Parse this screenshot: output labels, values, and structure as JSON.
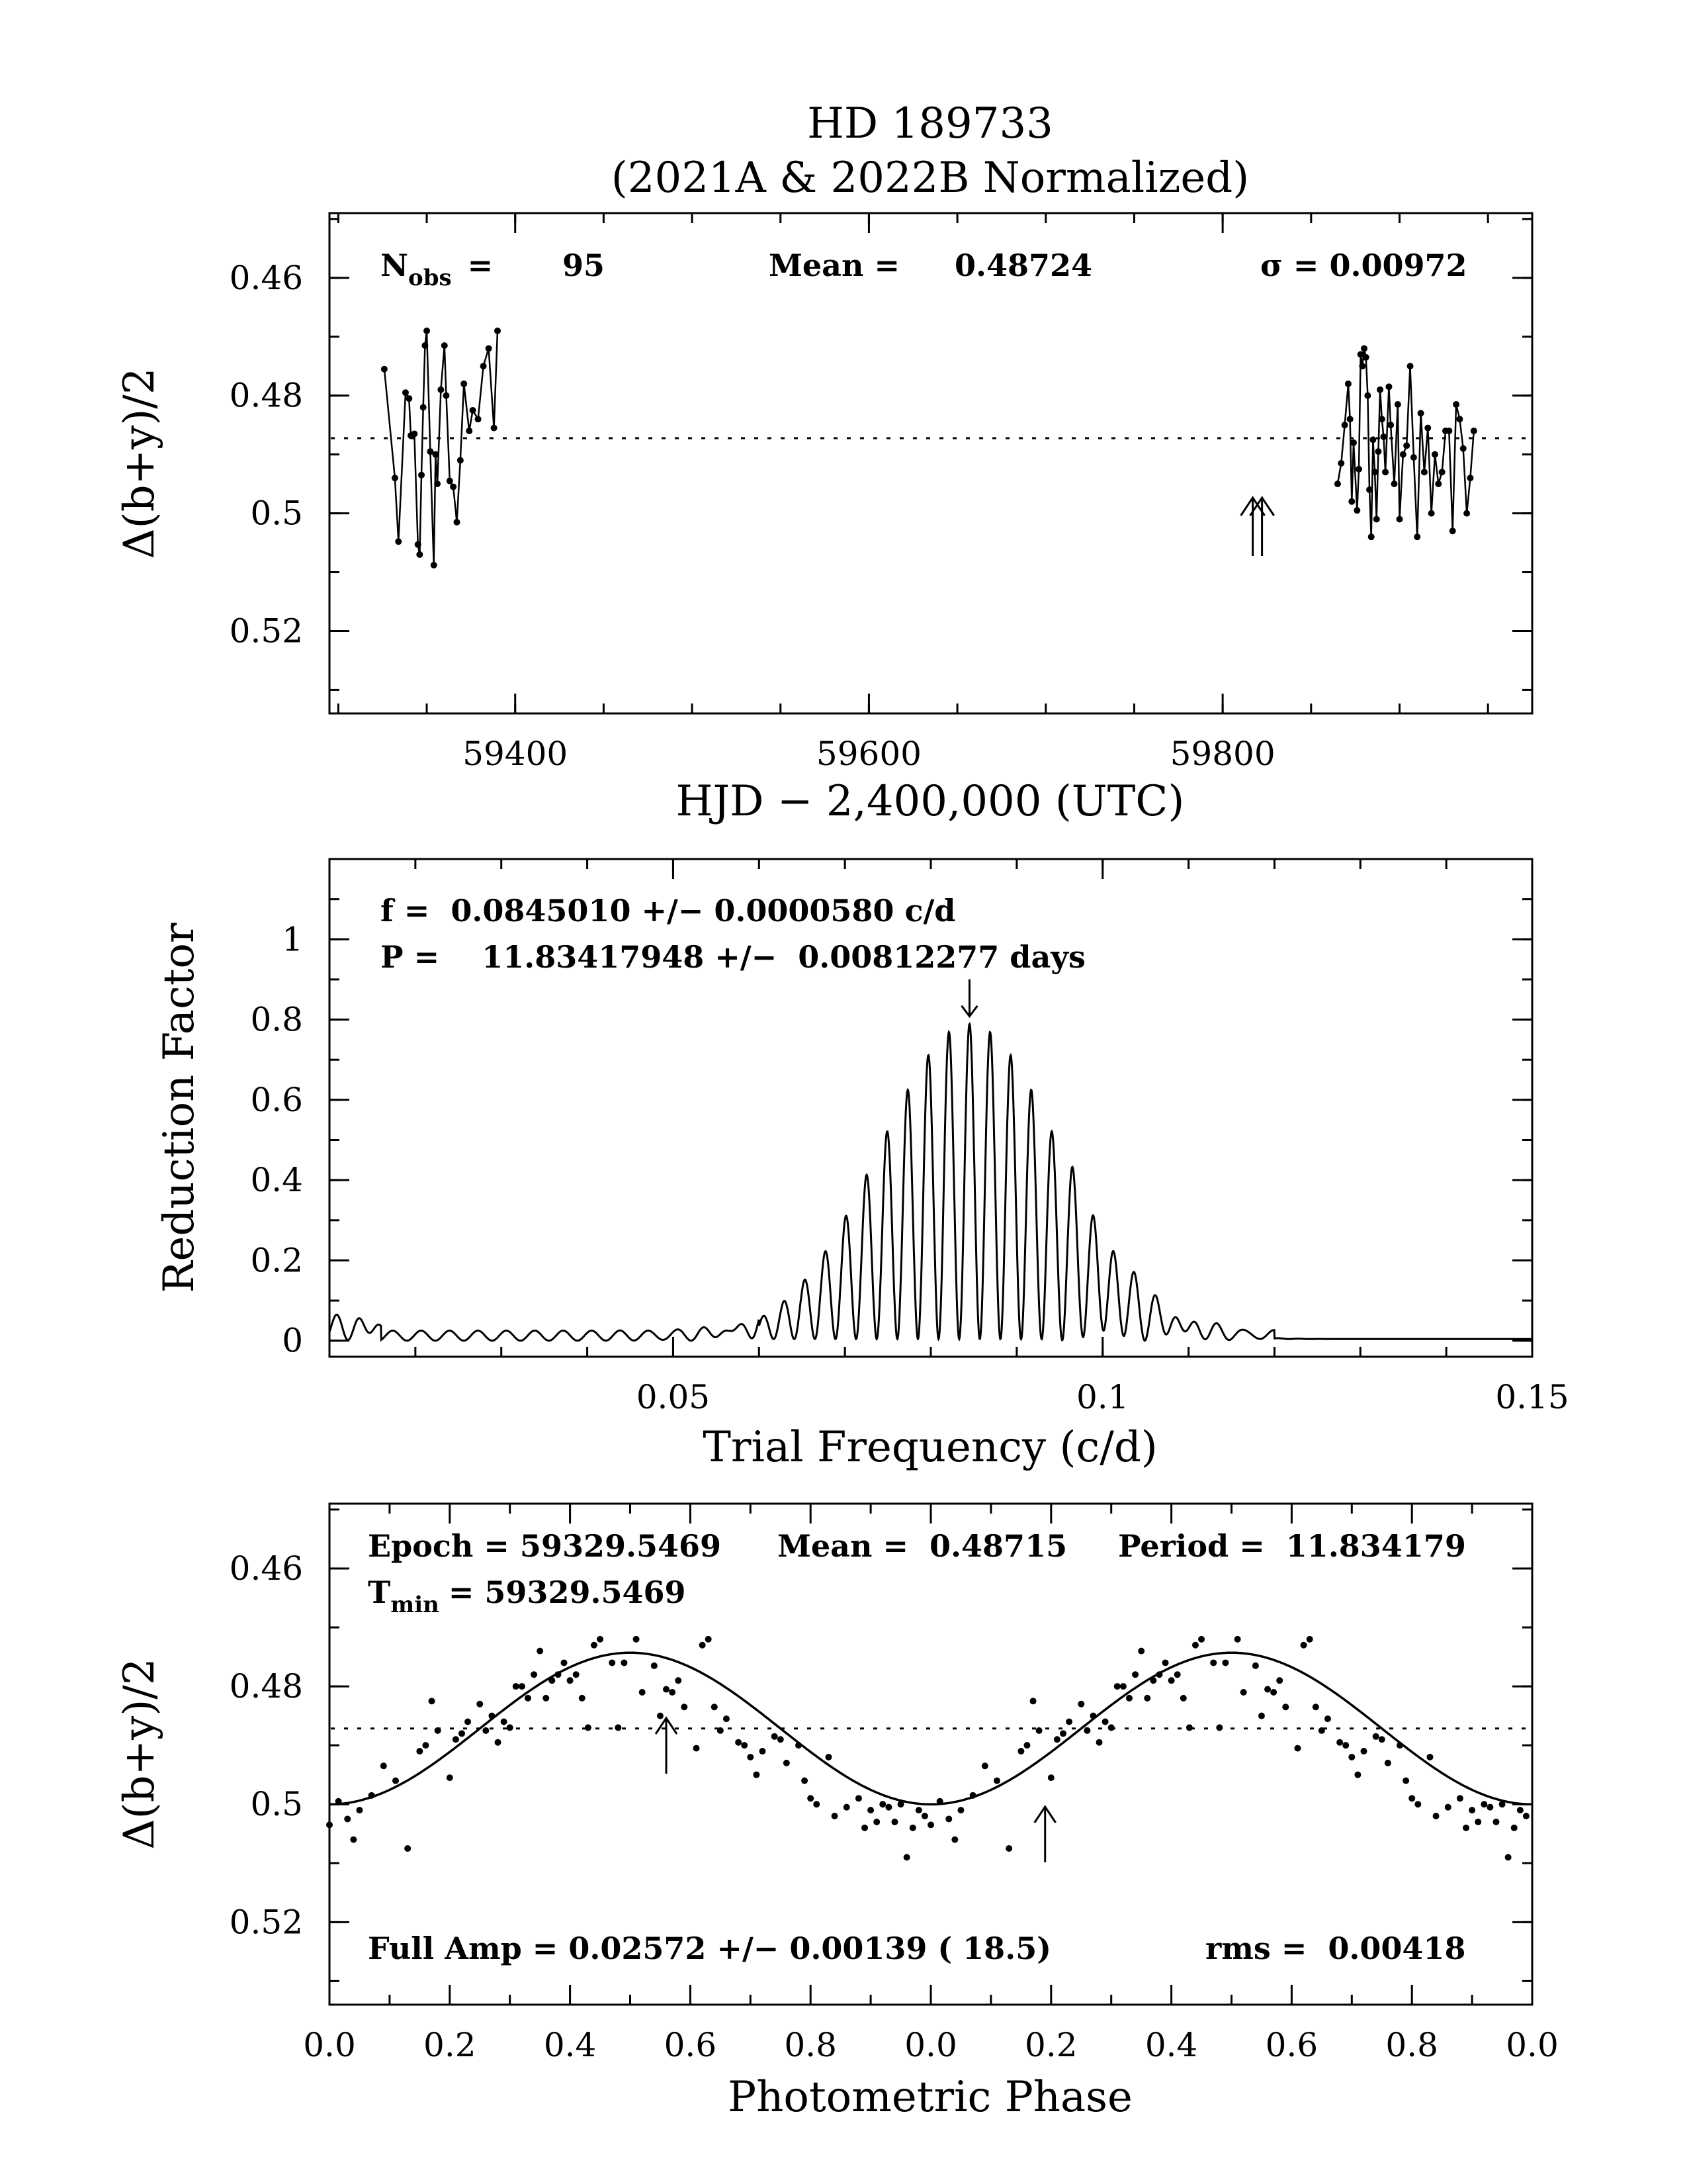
{
  "title": {
    "line1": "HD 189733",
    "line2": "(2021A & 2022B Normalized)"
  },
  "colors": {
    "ink": "#000000",
    "background": "#ffffff"
  },
  "chart_data": [
    {
      "type": "line",
      "panel": "light-curve",
      "xlabel": "HJD − 2,400,000 (UTC)",
      "ylabel": "Δ(b+y)/2",
      "xlim": [
        59295,
        59975
      ],
      "ylim": [
        0.534,
        0.449
      ],
      "y_inverted": true,
      "x_ticks": [
        59400,
        59600,
        59800
      ],
      "x_tick_labels": [
        "59400",
        "59600",
        "59800"
      ],
      "y_ticks": [
        0.46,
        0.48,
        0.5,
        0.52
      ],
      "y_tick_labels": [
        "0.46",
        "0.48",
        "0.5",
        "0.52"
      ],
      "mean_line": 0.48724,
      "stats": {
        "nobs_label": "N",
        "nobs_sub": "obs",
        "nobs_eq": "=",
        "nobs_value": "95",
        "mean_label": "Mean =",
        "mean_value": "0.48724",
        "sigma_label": "σ = 0.00972"
      },
      "arrows_x": [
        59817,
        59820
      ],
      "series": [
        {
          "x": [
            59326,
            59332,
            59334,
            59338,
            59340,
            59341,
            59343,
            59345,
            59346,
            59347,
            59348,
            59349,
            59350,
            59352,
            59354,
            59355,
            59356,
            59358,
            59360,
            59361,
            59363,
            59365,
            59367,
            59369,
            59371,
            59374,
            59376,
            59379,
            59382,
            59385,
            59388,
            59390
          ],
          "y": [
            0.4755,
            0.494,
            0.5048,
            0.4795,
            0.4805,
            0.4868,
            0.4865,
            0.5053,
            0.507,
            0.4935,
            0.482,
            0.4715,
            0.469,
            0.4895,
            0.5088,
            0.49,
            0.495,
            0.479,
            0.4715,
            0.48,
            0.4945,
            0.4955,
            0.5015,
            0.491,
            0.478,
            0.486,
            0.4825,
            0.484,
            0.475,
            0.472,
            0.4855,
            0.469
          ]
        },
        {
          "x": [
            59865,
            59867,
            59869,
            59871,
            59872,
            59873,
            59874,
            59876,
            59877,
            59878,
            59879,
            59880,
            59881,
            59882,
            59883,
            59884,
            59885,
            59886,
            59887,
            59888,
            59889,
            59890,
            59891,
            59892,
            59894,
            59895,
            59897,
            59899,
            59900,
            59902,
            59904,
            59906,
            59908,
            59910,
            59912,
            59914,
            59916,
            59918,
            59920,
            59922,
            59924,
            59926,
            59928,
            59930,
            59932,
            59934,
            59936,
            59938,
            59940,
            59942
          ],
          "y": [
            0.495,
            0.4915,
            0.485,
            0.478,
            0.484,
            0.498,
            0.488,
            0.4995,
            0.4925,
            0.473,
            0.475,
            0.472,
            0.4735,
            0.48,
            0.496,
            0.504,
            0.4875,
            0.493,
            0.501,
            0.4895,
            0.479,
            0.484,
            0.487,
            0.493,
            0.4785,
            0.485,
            0.495,
            0.4815,
            0.501,
            0.49,
            0.4885,
            0.475,
            0.4905,
            0.504,
            0.483,
            0.493,
            0.4855,
            0.5,
            0.49,
            0.495,
            0.493,
            0.486,
            0.486,
            0.503,
            0.4815,
            0.484,
            0.489,
            0.5,
            0.494,
            0.486
          ]
        }
      ]
    },
    {
      "type": "line",
      "panel": "periodogram",
      "xlabel": "Trial Frequency (c/d)",
      "ylabel": "Reduction Factor",
      "xlim": [
        0.01,
        0.15
      ],
      "ylim": [
        -0.04,
        1.2
      ],
      "x_ticks": [
        0.05,
        0.1,
        0.15
      ],
      "x_tick_labels": [
        "0.05",
        "0.1",
        "0.15"
      ],
      "y_ticks": [
        0,
        0.2,
        0.4,
        0.6,
        0.8,
        1
      ],
      "y_tick_labels": [
        "0",
        "0.2",
        "0.4",
        "0.6",
        "0.8",
        "1"
      ],
      "peak_frequency": 0.084501,
      "peak_value": 0.785,
      "envelope_sigma": 0.0105,
      "alias_spacing": 0.0024,
      "noise_level": 0.025,
      "text_f": "f =  0.0845010 +/− 0.0000580 c/d",
      "text_p": "P =    11.83417948 +/−  0.00812277 days"
    },
    {
      "type": "scatter",
      "panel": "phase-curve",
      "xlabel": "Photometric Phase",
      "ylabel": "Δ(b+y)/2",
      "xlim": [
        0,
        2
      ],
      "ylim": [
        0.534,
        0.449
      ],
      "y_inverted": true,
      "x_ticks": [
        0,
        0.2,
        0.4,
        0.6,
        0.8,
        1.0,
        1.2,
        1.4,
        1.6,
        1.8,
        2.0
      ],
      "x_tick_labels": [
        "0.0",
        "0.2",
        "0.4",
        "0.6",
        "0.8",
        "0.0",
        "0.2",
        "0.4",
        "0.6",
        "0.8",
        "0.0"
      ],
      "y_ticks": [
        0.46,
        0.48,
        0.5,
        0.52
      ],
      "y_tick_labels": [
        "0.46",
        "0.48",
        "0.5",
        "0.52"
      ],
      "mean_line": 0.48715,
      "fit": {
        "mean": 0.48715,
        "full_amplitude": 0.02572,
        "min_phase": 0.0
      },
      "arrows_phase": [
        0.56,
        1.19
      ],
      "text_epoch": "Epoch = 59329.5469",
      "text_mean": "Mean =  0.48715",
      "text_period": "Period =  11.834179",
      "tmin_label": "T",
      "tmin_sub": "min",
      "tmin_value": "= 59329.5469",
      "text_amp": "Full Amp = 0.02572 +/− 0.00139 ( 18.5)",
      "text_rms": "rms =  0.00418",
      "points": {
        "phase": [
          0.0,
          0.015,
          0.03,
          0.04,
          0.05,
          0.07,
          0.09,
          0.11,
          0.13,
          0.15,
          0.16,
          0.17,
          0.18,
          0.2,
          0.21,
          0.22,
          0.23,
          0.25,
          0.26,
          0.27,
          0.28,
          0.29,
          0.3,
          0.31,
          0.32,
          0.33,
          0.34,
          0.35,
          0.36,
          0.37,
          0.38,
          0.39,
          0.4,
          0.41,
          0.42,
          0.43,
          0.44,
          0.45,
          0.47,
          0.48,
          0.49,
          0.51,
          0.52,
          0.54,
          0.55,
          0.56,
          0.57,
          0.58,
          0.59,
          0.61,
          0.62,
          0.63,
          0.64,
          0.65,
          0.66,
          0.68,
          0.69,
          0.7,
          0.71,
          0.72,
          0.74,
          0.75,
          0.76,
          0.78,
          0.79,
          0.8,
          0.81,
          0.83,
          0.84,
          0.86,
          0.88,
          0.89,
          0.9,
          0.91,
          0.92,
          0.93,
          0.94,
          0.95,
          0.96,
          0.97,
          0.98,
          0.99
        ],
        "mag": [
          0.5035,
          0.4995,
          0.5025,
          0.506,
          0.501,
          0.4985,
          0.4935,
          0.496,
          0.5075,
          0.491,
          0.49,
          0.4825,
          0.4875,
          0.4955,
          0.489,
          0.488,
          0.486,
          0.483,
          0.4875,
          0.485,
          0.4895,
          0.486,
          0.487,
          0.48,
          0.48,
          0.482,
          0.478,
          0.474,
          0.482,
          0.479,
          0.478,
          0.476,
          0.479,
          0.478,
          0.482,
          0.487,
          0.473,
          0.472,
          0.476,
          0.487,
          0.476,
          0.472,
          0.481,
          0.4765,
          0.485,
          0.4805,
          0.481,
          0.479,
          0.4835,
          0.4905,
          0.473,
          0.472,
          0.4835,
          0.4875,
          0.4855,
          0.4895,
          0.49,
          0.492,
          0.495,
          0.491,
          0.4885,
          0.489,
          0.493,
          0.49,
          0.496,
          0.499,
          0.5,
          0.492,
          0.502,
          0.5005,
          0.499,
          0.504,
          0.501,
          0.503,
          0.5,
          0.5005,
          0.503,
          0.5,
          0.509,
          0.504,
          0.501,
          0.502
        ]
      }
    }
  ]
}
